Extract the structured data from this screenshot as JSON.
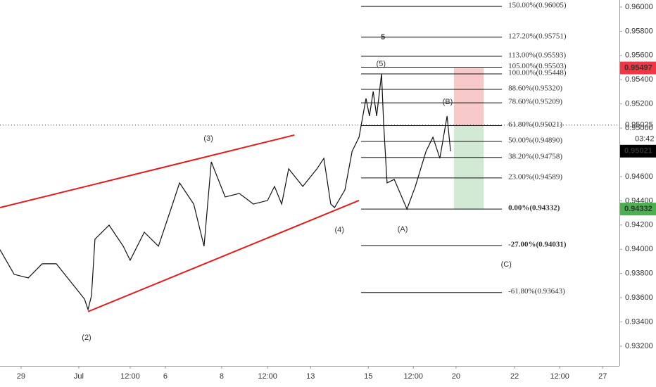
{
  "chart_data": {
    "type": "line",
    "x": [
      0,
      0.49,
      0.98,
      1.46,
      1.95,
      2.44,
      2.93,
      3.05,
      3.17,
      3.29,
      3.78,
      4.27,
      4.51,
      5.0,
      5.49,
      5.98,
      6.22,
      6.71,
      7.07,
      7.32,
      7.8,
      8.29,
      8.78,
      9.27,
      9.51,
      9.76,
      10.0,
      10.49,
      10.98,
      11.22,
      11.46,
      11.59,
      11.95,
      12.2,
      12.44,
      12.68,
      12.8,
      12.93,
      13.05,
      13.22,
      13.29,
      13.41,
      13.66,
      14.1,
      14.39,
      14.76,
      15.0,
      15.24,
      15.49,
      15.61
    ],
    "values": [
      0.93996,
      0.93793,
      0.93764,
      0.9388,
      0.9388,
      0.93734,
      0.93589,
      0.93502,
      0.93618,
      0.94083,
      0.94199,
      0.94025,
      0.93909,
      0.94141,
      0.94025,
      0.94373,
      0.94548,
      0.94373,
      0.94025,
      0.94722,
      0.94432,
      0.94461,
      0.94373,
      0.94403,
      0.94519,
      0.94373,
      0.94664,
      0.94519,
      0.94664,
      0.94751,
      0.94373,
      0.94344,
      0.9449,
      0.94809,
      0.94925,
      0.95245,
      0.951,
      0.95303,
      0.951,
      0.95448,
      0.95042,
      0.94548,
      0.94577,
      0.94332,
      0.94519,
      0.94809,
      0.94925,
      0.94751,
      0.951,
      0.94809
    ],
    "color": "#111111",
    "xlim": [
      0,
      21.46
    ],
    "ylim": [
      0.93037,
      0.96058
    ],
    "xticks": [
      {
        "value": 0.73,
        "label": "29"
      },
      {
        "value": 2.73,
        "label": "Jul"
      },
      {
        "value": 4.51,
        "label": "12:00"
      },
      {
        "value": 5.73,
        "label": "6"
      },
      {
        "value": 7.68,
        "label": "8"
      },
      {
        "value": 9.27,
        "label": "12:00"
      },
      {
        "value": 10.76,
        "label": "13"
      },
      {
        "value": 12.76,
        "label": "15"
      },
      {
        "value": 14.32,
        "label": "12:00"
      },
      {
        "value": 15.8,
        "label": "20"
      },
      {
        "value": 17.83,
        "label": "22"
      },
      {
        "value": 19.39,
        "label": "12:00"
      },
      {
        "value": 20.88,
        "label": "27"
      }
    ],
    "yticks": [
      {
        "value": 0.932,
        "label": "0.93200"
      },
      {
        "value": 0.934,
        "label": "0.93400"
      },
      {
        "value": 0.936,
        "label": "0.93600"
      },
      {
        "value": 0.938,
        "label": "0.93800"
      },
      {
        "value": 0.94,
        "label": "0.94000"
      },
      {
        "value": 0.942,
        "label": "0.94200"
      },
      {
        "value": 0.944,
        "label": "0.94400"
      },
      {
        "value": 0.946,
        "label": "0.94600"
      },
      {
        "value": 0.948,
        "label": "0.94800"
      },
      {
        "value": 0.95,
        "label": "0.95000"
      },
      {
        "value": 0.952,
        "label": "0.95200"
      },
      {
        "value": 0.954,
        "label": "0.95400"
      },
      {
        "value": 0.956,
        "label": "0.95600"
      },
      {
        "value": 0.958,
        "label": "0.95800"
      },
      {
        "value": 0.96,
        "label": "0.96000"
      }
    ],
    "trend_lines": [
      {
        "color": "#e21b1b",
        "x": [
          0,
          10.2
        ],
        "values": [
          0.94344,
          0.94943
        ]
      },
      {
        "color": "#e21b1b",
        "x": [
          3.05,
          12.44
        ],
        "values": [
          0.93485,
          0.94403
        ]
      }
    ],
    "fibonacci": {
      "x": [
        12.51,
        17.39
      ],
      "levels": [
        {
          "value": 0.96005,
          "label": "150.00%(0.96005)"
        },
        {
          "value": 0.95751,
          "label": "127.20%(0.95751)"
        },
        {
          "value": 0.95593,
          "label": "113.00%(0.95593)"
        },
        {
          "value": 0.95503,
          "label": "105.00%(0.95503)"
        },
        {
          "value": 0.95448,
          "label": "100.00%(0.95448)"
        },
        {
          "value": 0.9532,
          "label": "88.60%(0.95320)"
        },
        {
          "value": 0.95209,
          "label": "78.60%(0.95209)"
        },
        {
          "value": 0.95021,
          "label": "61.80%(0.95021)"
        },
        {
          "value": 0.9489,
          "label": "50.00%(0.94890)"
        },
        {
          "value": 0.94758,
          "label": "38.20%(0.94758)"
        },
        {
          "value": 0.94589,
          "label": "23.00%(0.94589)"
        },
        {
          "value": 0.94332,
          "label": "0.00%(0.94332)"
        },
        {
          "value": 0.94031,
          "label": "-27.00%(0.94031)"
        },
        {
          "value": 0.93643,
          "label": "-61.80%(0.93643)"
        }
      ]
    },
    "position": {
      "x": [
        15.73,
        16.76
      ],
      "entry": 0.95021,
      "stop": 0.95497,
      "target": 0.94332,
      "stop_color": "#f7c9c9",
      "target_color": "#d2ead3"
    },
    "annotations": [
      {
        "text": "(2)",
        "x": 3.0,
        "y": 0.9327
      },
      {
        "text": "(3)",
        "x": 7.22,
        "y": 0.94914
      },
      {
        "text": "(4)",
        "x": 11.76,
        "y": 0.94159
      },
      {
        "text": "(5)",
        "x": 13.2,
        "y": 0.9553
      },
      {
        "text": "(A)",
        "x": 13.95,
        "y": 0.94164
      },
      {
        "text": "(B)",
        "x": 15.51,
        "y": 0.95216
      },
      {
        "text": "(C)",
        "x": 17.54,
        "y": 0.93874
      },
      {
        "text": "5",
        "x": 13.27,
        "y": 0.9575
      }
    ],
    "price_labels": [
      {
        "value": 0.95497,
        "label": "0.95497",
        "color": "#f23645"
      },
      {
        "value": 0.95025,
        "label": "0.95025",
        "countdown": "03:42"
      },
      {
        "value": 0.95021,
        "label": "0.95021",
        "color": "#000000"
      },
      {
        "value": 0.94332,
        "label": "0.94332",
        "color": "#4caf50"
      }
    ]
  }
}
